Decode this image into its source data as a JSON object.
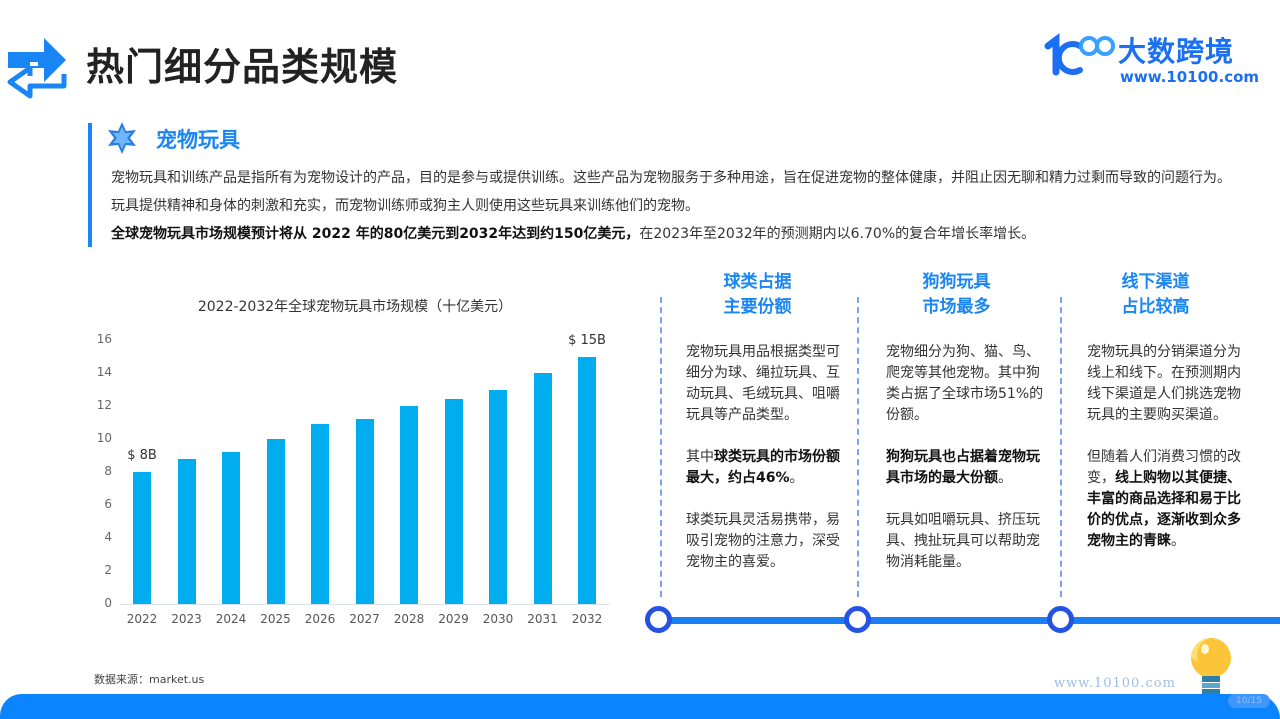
{
  "header": {
    "title": "热门细分品类规模",
    "icon": "arrow-swap-icon"
  },
  "logo": {
    "mark": "1c00",
    "name": "大数跨境",
    "url": "www.10100.com"
  },
  "intro": {
    "section_title": "宠物玩具",
    "section_icon": "star-icon",
    "paragraph_1": "宠物玩具和训练产品是指所有为宠物设计的产品，目的是参与或提供训练。这些产品为宠物服务于多种用途，旨在促进宠物的整体健康，并阻止因无聊和精力过剩而导致的问题行为。玩具提供精神和身体的刺激和充实，而宠物训练师或狗主人则使用这些玩具来训练他们的宠物。",
    "paragraph_2_bold": "全球宠物玩具市场规模预计将从 2022 年的80亿美元到2032年达到约150亿美元，",
    "paragraph_2_rest": "在2023年至2032年的预测期内以6.70%的复合年增长率增长。"
  },
  "chart_data": {
    "type": "bar",
    "title": "2022-2032年全球宠物玩具市场规模（十亿美元）",
    "xlabel": "",
    "ylabel": "",
    "categories": [
      "2022",
      "2023",
      "2024",
      "2025",
      "2026",
      "2027",
      "2028",
      "2029",
      "2030",
      "2031",
      "2032"
    ],
    "values": [
      8.0,
      8.8,
      9.2,
      10.0,
      10.9,
      11.2,
      12.0,
      12.4,
      13.0,
      14.0,
      15.0
    ],
    "yticks": [
      "0",
      "2",
      "4",
      "6",
      "8",
      "10",
      "12",
      "14",
      "16"
    ],
    "ylim": [
      0,
      16
    ],
    "grid": false,
    "color": "#00aeef",
    "annotations": [
      {
        "category": "2022",
        "text": "$ 8B"
      },
      {
        "category": "2032",
        "text": "$ 15B"
      }
    ]
  },
  "source": "数据来源：market.us",
  "columns": [
    {
      "title_line1": "球类占据",
      "title_line2": "主要份额",
      "p1": "宠物玩具用品根据类型可细分为球、绳拉玩具、互动玩具、毛绒玩具、咀嚼玩具等产品类型。",
      "p2_normal": "其中",
      "p2_bold": "球类玩具的市场份额最大，约占46%",
      "p2_end": "。",
      "p3": "球类玩具灵活易携带，易吸引宠物的注意力，深受宠物主的喜爱。"
    },
    {
      "title_line1": "狗狗玩具",
      "title_line2": "市场最多",
      "p1": "宠物细分为狗、猫、鸟、爬宠等其他宠物。其中狗类占据了全球市场51%的份额。",
      "p2_bold": "狗狗玩具也占据着宠物玩具市场的最大份额",
      "p2_end": "。",
      "p3": "玩具如咀嚼玩具、挤压玩具、拽扯玩具可以帮助宠物消耗能量。"
    },
    {
      "title_line1": "线下渠道",
      "title_line2": "占比较高",
      "p1": "宠物玩具的分销渠道分为线上和线下。在预测期内线下渠道是人们挑选宠物玩具的主要购买渠道。",
      "p2_normal": "但随着人们消费习惯的改变，",
      "p2_bold": "线上购物以其便捷、丰富的商品选择和易于比价的优点，逐渐收到众多宠物主的青睐",
      "p2_end": "。"
    }
  ],
  "footer": {
    "url": "www.10100.com",
    "badge": "10/15",
    "bulb_icon": "lightbulb-icon"
  },
  "colors": {
    "accent": "#1a86f5",
    "bar": "#00aeef",
    "timeline": "#1a7ef5",
    "node_ring": "#2452e3",
    "footer": "#0a84ff"
  }
}
